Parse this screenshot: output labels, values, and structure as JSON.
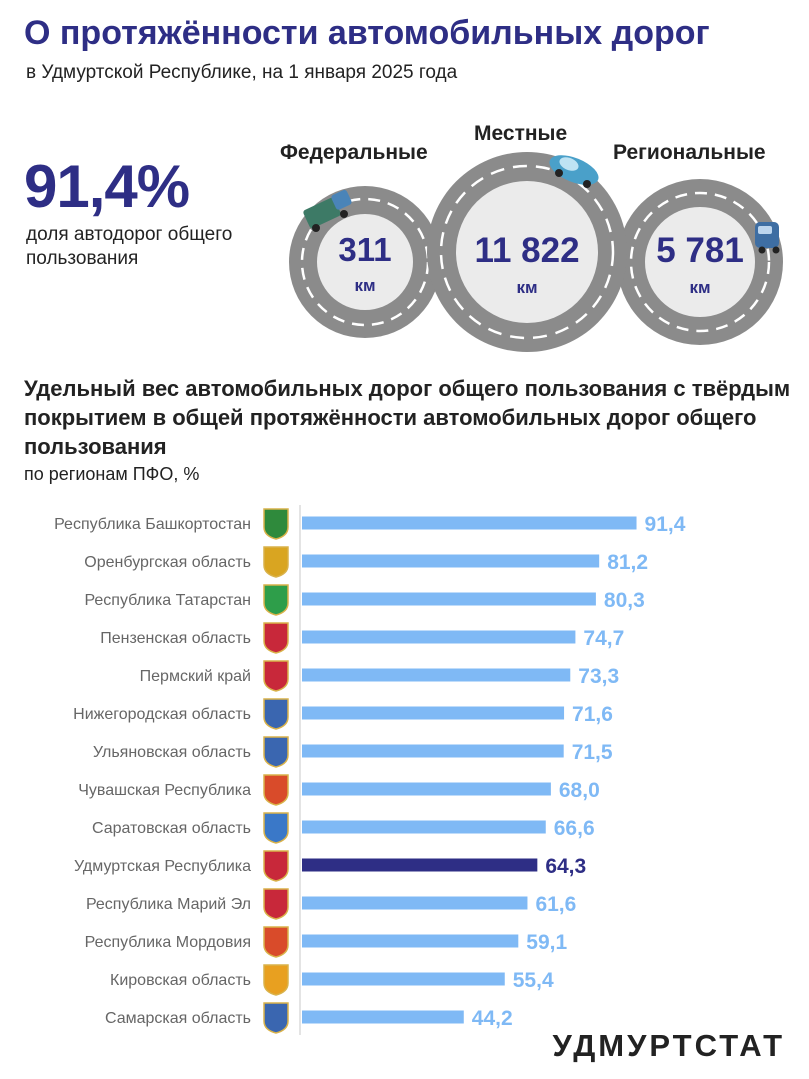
{
  "header": {
    "title": "О протяжённости автомобильных дорог",
    "subtitle": "в Удмуртской Республике, на 1 января 2025 года"
  },
  "summary": {
    "share_value": "91,4%",
    "share_label": "доля автодорог общего пользования"
  },
  "roads": [
    {
      "label": "Федеральные",
      "value": "311",
      "unit": "км"
    },
    {
      "label": "Местные",
      "value": "11 822",
      "unit": "км"
    },
    {
      "label": "Региональные",
      "value": "5 781",
      "unit": "км"
    }
  ],
  "section": {
    "title": "Удельный вес автомобильных дорог общего пользования с твёрдым покрытием в общей протяжённости автомобильных дорог общего пользования",
    "subtitle": "по регионам ПФО, %"
  },
  "colors": {
    "title": "#2e2e85",
    "bar": "#7fb9f5",
    "bar_highlight": "#2e2e85",
    "value_label": "#7fb9f5",
    "value_label_highlight": "#2e2e85",
    "road_outer": "#8b8b8b",
    "road_inner": "#ebebeb"
  },
  "chart_data": {
    "type": "bar",
    "orientation": "horizontal",
    "title": "Удельный вес автомобильных дорог общего пользования с твёрдым покрытием в общей протяжённости автомобильных дорог общего пользования",
    "subtitle": "по регионам ПФО, %",
    "xlabel": "",
    "ylabel": "",
    "xlim": [
      0,
      100
    ],
    "grid": false,
    "highlight": "Удмуртская Республика",
    "categories": [
      "Республика Башкортостан",
      "Оренбургская область",
      "Республика Татарстан",
      "Пензенская область",
      "Пермский край",
      "Нижегородская область",
      "Ульяновская область",
      "Чувашская Республика",
      "Саратовская область",
      "Удмуртская Республика",
      "Республика Марий Эл",
      "Республика Мордовия",
      "Кировская область",
      "Самарская область"
    ],
    "values": [
      91.4,
      81.2,
      80.3,
      74.7,
      73.3,
      71.6,
      71.5,
      68.0,
      66.6,
      64.3,
      61.6,
      59.1,
      55.4,
      44.2
    ],
    "value_labels": [
      "91,4",
      "81,2",
      "80,3",
      "74,7",
      "73,3",
      "71,6",
      "71,5",
      "68,0",
      "66,6",
      "64,3",
      "61,6",
      "59,1",
      "55,4",
      "44,2"
    ]
  },
  "footer": {
    "brand": "УДМУРТСТАТ"
  }
}
